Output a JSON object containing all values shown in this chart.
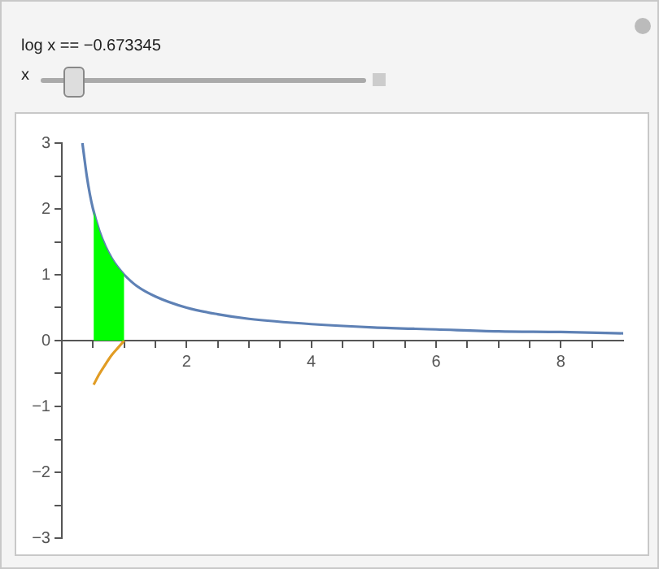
{
  "chart_data": {
    "type": "line",
    "title": "log x == −0.673345",
    "annotations": [
      "x"
    ],
    "xlim": [
      0,
      9
    ],
    "xticks": [
      {
        "value": 0.5,
        "label": null
      },
      {
        "value": 1,
        "label": null
      },
      {
        "value": 1.5,
        "label": null
      },
      2,
      {
        "value": 2.5,
        "label": null
      },
      {
        "value": 3,
        "label": null
      },
      {
        "value": 3.5,
        "label": null
      },
      4,
      {
        "value": 4.5,
        "label": null
      },
      {
        "value": 5,
        "label": null
      },
      {
        "value": 5.5,
        "label": null
      },
      6,
      {
        "value": 6.5,
        "label": null
      },
      {
        "value": 7,
        "label": null
      },
      {
        "value": 7.5,
        "label": null
      },
      8,
      {
        "value": 8.5,
        "label": null
      }
    ],
    "ylim": [
      -3,
      3
    ],
    "yticks": [
      -3,
      {
        "value": -2.5,
        "label": null
      },
      -2,
      {
        "value": -1.5,
        "label": null
      },
      -1,
      {
        "value": -0.5,
        "label": null
      },
      0,
      {
        "value": 0.5,
        "label": null
      },
      1,
      {
        "value": 1.5,
        "label": null
      },
      2,
      {
        "value": 2.5,
        "label": null
      },
      3
    ],
    "grid": false,
    "legend": false,
    "series": [
      {
        "type": "area",
        "color": "#00ff00",
        "x": [
          0.51,
          0.6,
          0.7,
          0.8,
          0.9,
          1
        ],
        "values": [
          1.96,
          1.67,
          1.43,
          1.25,
          1.11,
          1
        ]
      },
      {
        "type": "line",
        "color": "#5e81b5",
        "x": [
          0.33,
          0.36,
          0.4,
          0.45,
          0.5,
          0.6,
          0.7,
          0.8,
          0.9,
          1,
          1.2,
          1.5,
          2,
          2.5,
          3,
          4,
          5,
          6,
          7,
          8,
          9
        ],
        "values": [
          3,
          2.78,
          2.5,
          2.22,
          2,
          1.67,
          1.43,
          1.25,
          1.11,
          1,
          0.83,
          0.67,
          0.5,
          0.4,
          0.33,
          0.25,
          0.2,
          0.17,
          0.14,
          0.13,
          0.11
        ]
      },
      {
        "type": "line",
        "color": "#e19c24",
        "x": [
          0.51,
          0.6,
          0.7,
          0.8,
          0.9,
          1
        ],
        "values": [
          -0.67,
          -0.51,
          -0.36,
          -0.22,
          -0.11,
          0
        ]
      }
    ]
  }
}
